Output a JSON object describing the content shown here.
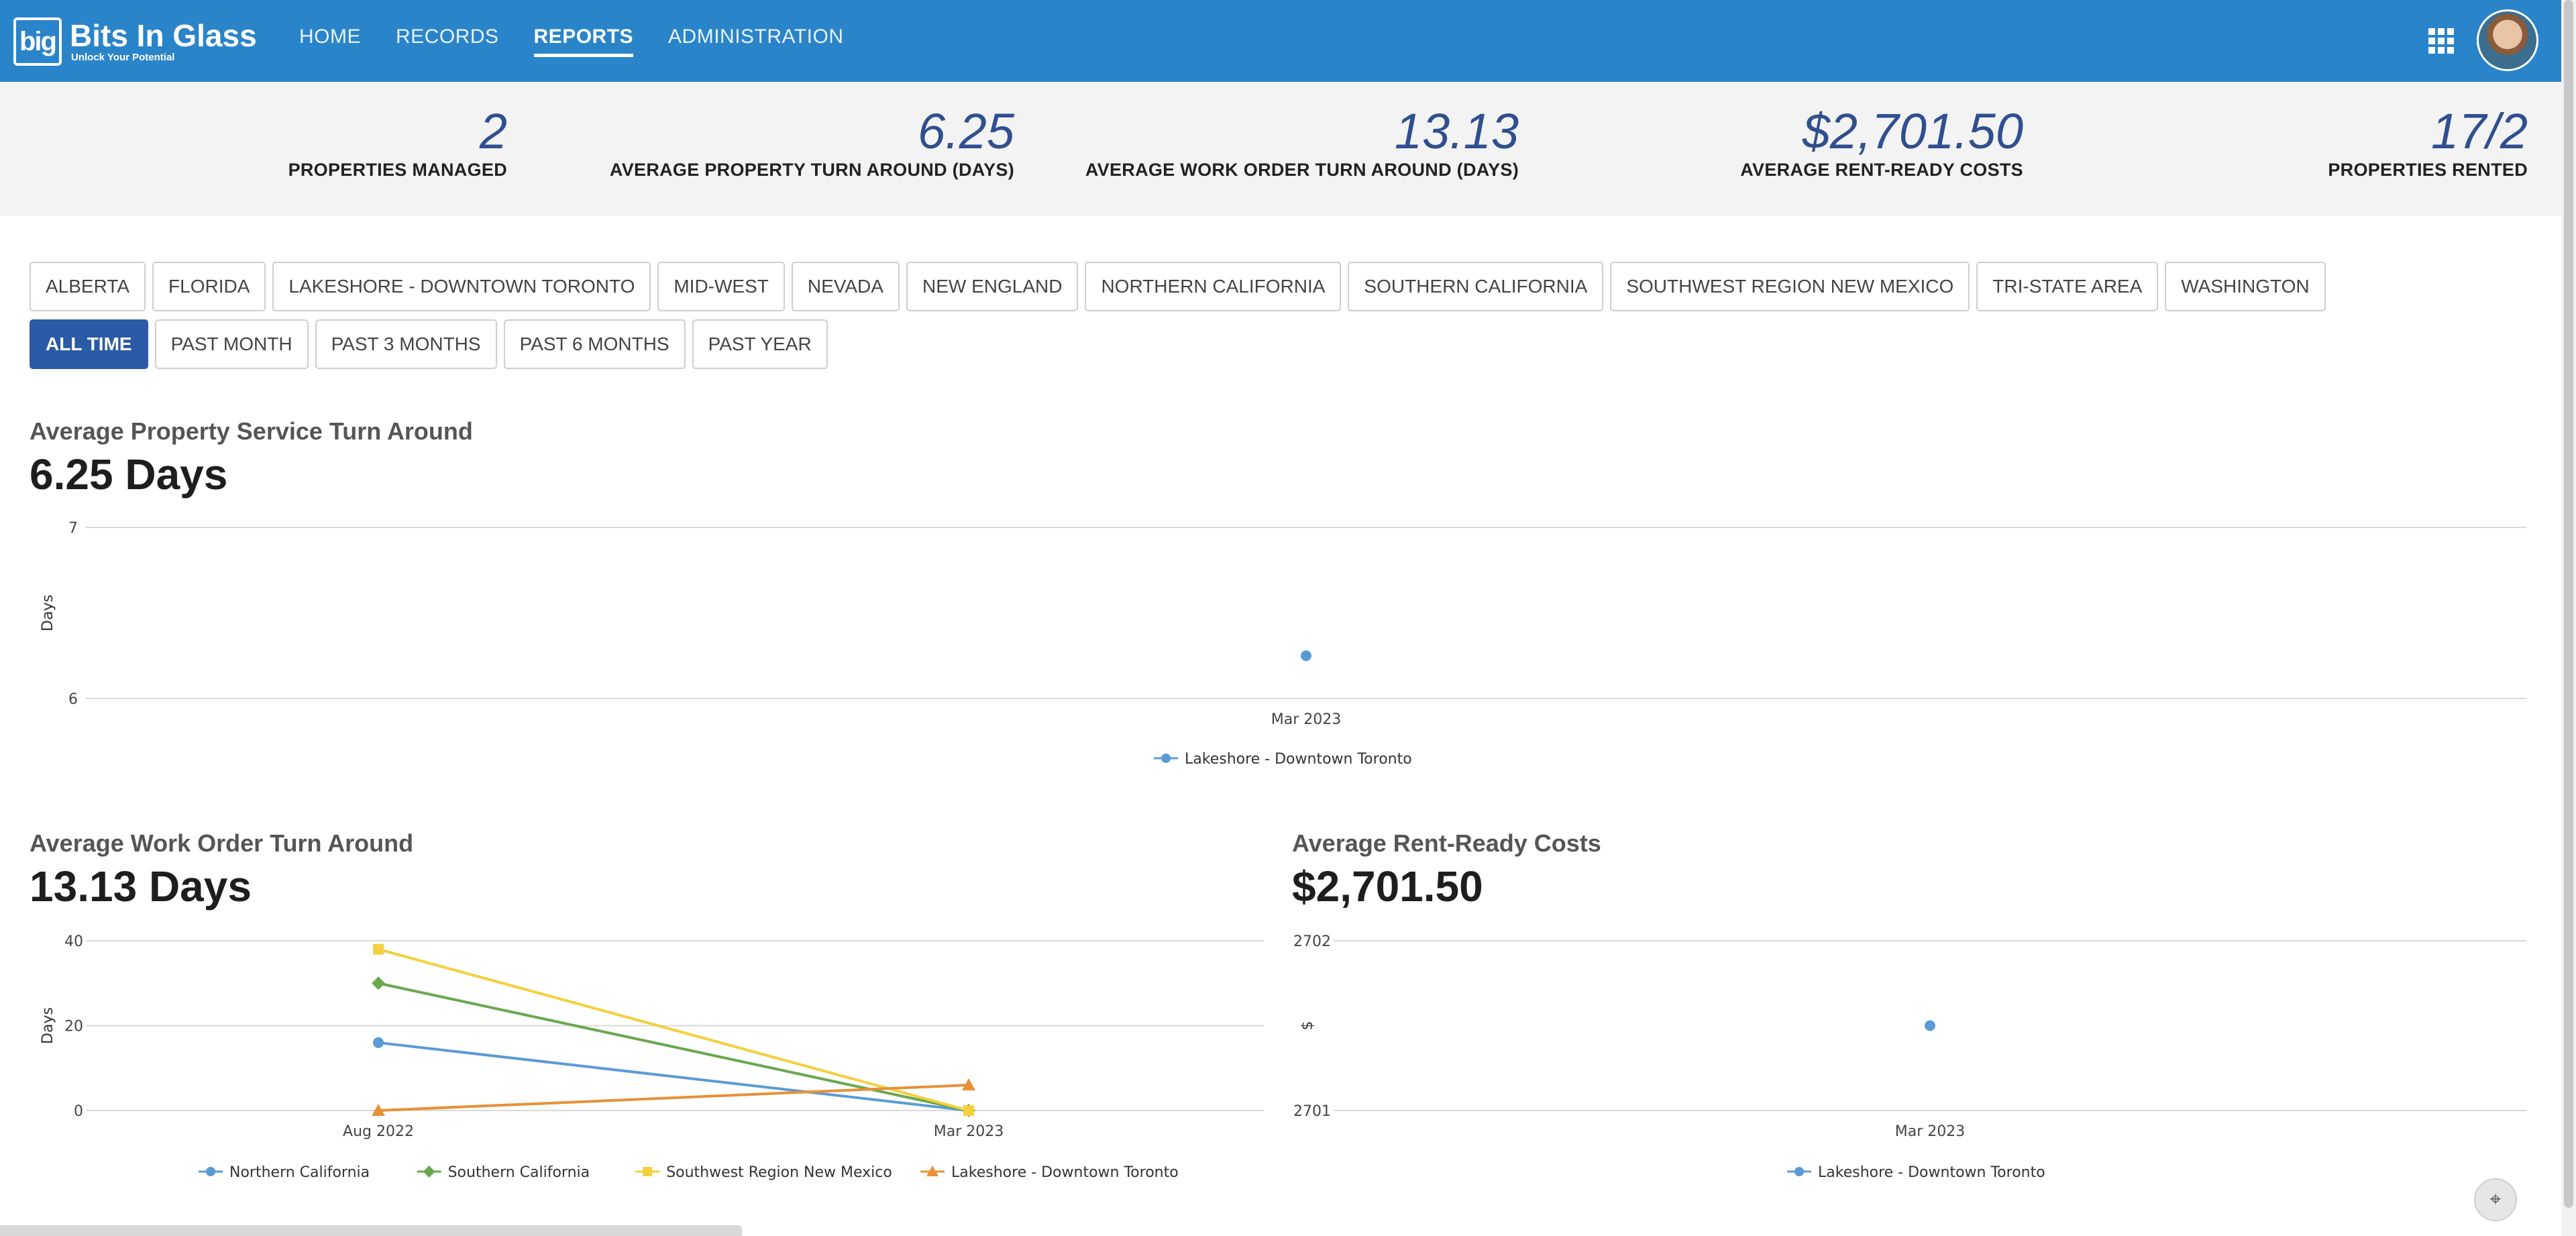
{
  "app": {
    "logo_mark": "big",
    "title": "Bits In Glass",
    "subtitle": "Unlock Your Potential"
  },
  "nav": {
    "items": [
      "HOME",
      "RECORDS",
      "REPORTS",
      "ADMINISTRATION"
    ],
    "active": "REPORTS"
  },
  "kpis": [
    {
      "value": "2",
      "label": "PROPERTIES MANAGED"
    },
    {
      "value": "6.25",
      "label": "AVERAGE PROPERTY TURN AROUND (DAYS)"
    },
    {
      "value": "13.13",
      "label": "AVERAGE WORK ORDER TURN AROUND (DAYS)"
    },
    {
      "value": "$2,701.50",
      "label": "AVERAGE RENT-READY COSTS"
    },
    {
      "value": "17/2",
      "label": "PROPERTIES RENTED"
    }
  ],
  "region_filters": [
    "ALBERTA",
    "FLORIDA",
    "LAKESHORE - DOWNTOWN TORONTO",
    "MID-WEST",
    "NEVADA",
    "NEW ENGLAND",
    "NORTHERN CALIFORNIA",
    "SOUTHERN CALIFORNIA",
    "SOUTHWEST REGION NEW MEXICO",
    "TRI-STATE AREA",
    "WASHINGTON"
  ],
  "time_filters": [
    "ALL TIME",
    "PAST MONTH",
    "PAST 3 MONTHS",
    "PAST 6 MONTHS",
    "PAST YEAR"
  ],
  "active_time_filter": "ALL TIME",
  "sections": {
    "property": {
      "title": "Average Property Service Turn Around",
      "value": "6.25 Days"
    },
    "work_order": {
      "title": "Average Work Order Turn Around",
      "value": "13.13 Days"
    },
    "rent_ready": {
      "title": "Average Rent-Ready Costs",
      "value": "$2,701.50"
    }
  },
  "colors": {
    "nav_bg": "#2a84c9",
    "accent": "#2b5aa6",
    "kpi_value": "#2f4f8f",
    "series_blue": "#5b9bd5",
    "series_green": "#6aa84f",
    "series_yellow": "#f4d03f",
    "series_orange": "#e69138"
  },
  "icons": {
    "apps": "grid-icon",
    "cursor": "pointer-select-icon"
  },
  "chart_data": [
    {
      "type": "scatter",
      "title": "Average Property Service Turn Around",
      "xlabel": "",
      "ylabel": "Days",
      "x": [
        "Mar 2023"
      ],
      "ylim": [
        6,
        7
      ],
      "yticks": [
        6,
        7
      ],
      "series": [
        {
          "name": "Lakeshore - Downtown Toronto",
          "values": [
            6.25
          ],
          "color": "#5b9bd5",
          "marker": "circle"
        }
      ],
      "legend": "bottom",
      "grid": true
    },
    {
      "type": "line",
      "title": "Average Work Order Turn Around",
      "xlabel": "",
      "ylabel": "Days",
      "x": [
        "Aug 2022",
        "Mar 2023"
      ],
      "ylim": [
        0,
        40
      ],
      "yticks": [
        0,
        20,
        40
      ],
      "series": [
        {
          "name": "Northern California",
          "values": [
            16,
            0
          ],
          "color": "#5b9bd5",
          "marker": "circle"
        },
        {
          "name": "Southern California",
          "values": [
            30,
            0
          ],
          "color": "#6aa84f",
          "marker": "diamond"
        },
        {
          "name": "Southwest Region New Mexico",
          "values": [
            38,
            0
          ],
          "color": "#f4d03f",
          "marker": "square"
        },
        {
          "name": "Lakeshore - Downtown Toronto",
          "values": [
            0,
            6
          ],
          "color": "#e69138",
          "marker": "triangle"
        }
      ],
      "legend": "bottom",
      "grid": true
    },
    {
      "type": "scatter",
      "title": "Average Rent-Ready Costs",
      "xlabel": "",
      "ylabel": "$",
      "x": [
        "Mar 2023"
      ],
      "ylim": [
        2701,
        2702
      ],
      "yticks": [
        2701,
        2702
      ],
      "series": [
        {
          "name": "Lakeshore - Downtown Toronto",
          "values": [
            2701.5
          ],
          "color": "#5b9bd5",
          "marker": "circle"
        }
      ],
      "legend": "bottom",
      "grid": true
    }
  ]
}
